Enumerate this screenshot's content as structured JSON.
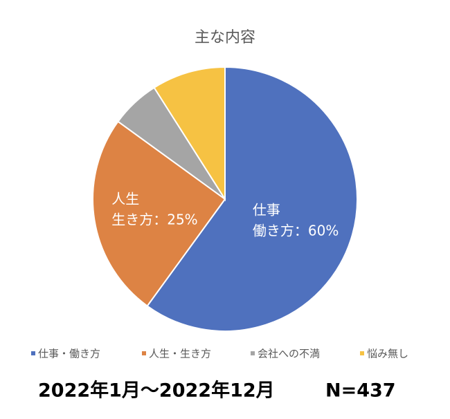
{
  "chart_data": {
    "type": "pie",
    "title": "主な内容",
    "categories": [
      "仕事・働き方",
      "人生・生き方",
      "会社への不満",
      "悩み無し"
    ],
    "values": [
      60,
      25,
      6,
      9
    ],
    "value_labels": [
      "仕事\n働き方：60%",
      "人生\n生き方：25%",
      null,
      null
    ],
    "colors": [
      "#4f71be",
      "#dd8344",
      "#a5a5a5",
      "#f6c243"
    ],
    "footnote": "2022年1月～2022年12月",
    "sample_size": "N=437"
  }
}
